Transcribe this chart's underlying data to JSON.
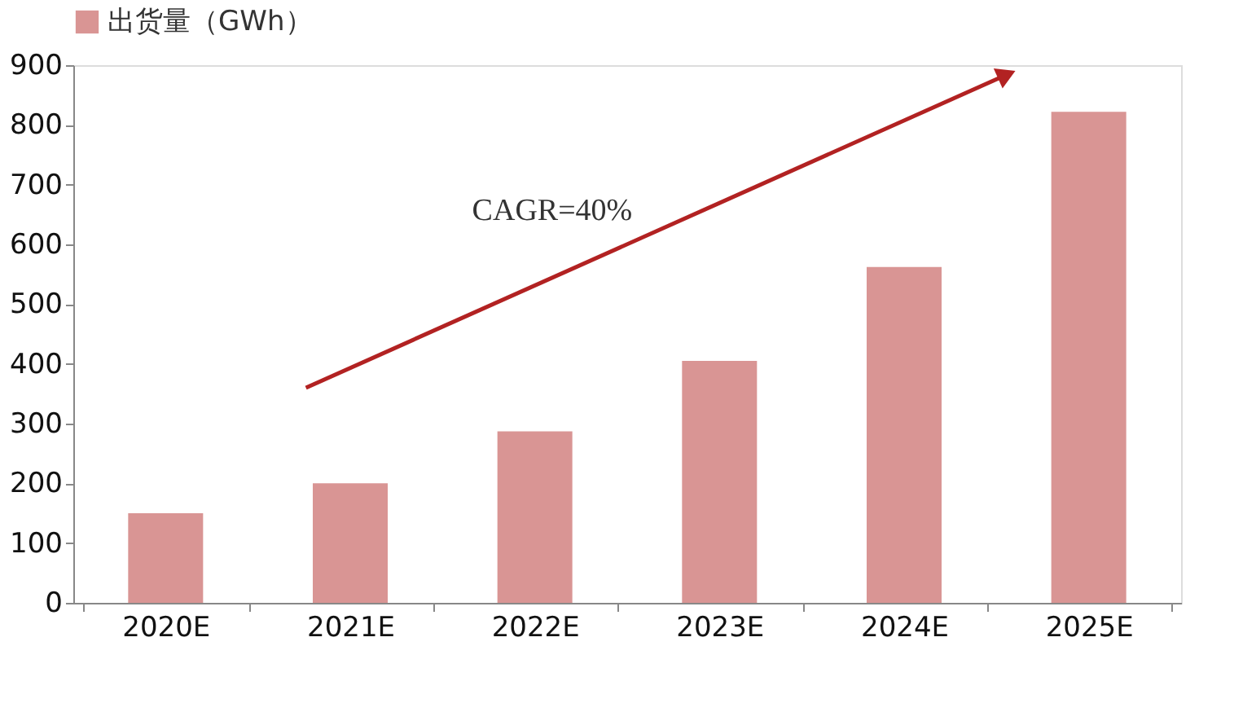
{
  "chart_data": {
    "type": "bar",
    "categories": [
      "2020E",
      "2021E",
      "2022E",
      "2023E",
      "2024E",
      "2025E"
    ],
    "series": [
      {
        "name": "出货量（GWh）",
        "color": "#d99594",
        "values": [
          150,
          200,
          287,
          405,
          562,
          822
        ]
      }
    ],
    "ylim": [
      0,
      900
    ],
    "yticks": [
      0,
      100,
      200,
      300,
      400,
      500,
      600,
      700,
      800,
      900
    ],
    "grid": false,
    "legend": "top",
    "annotations": [
      "CAGR=40%"
    ]
  }
}
